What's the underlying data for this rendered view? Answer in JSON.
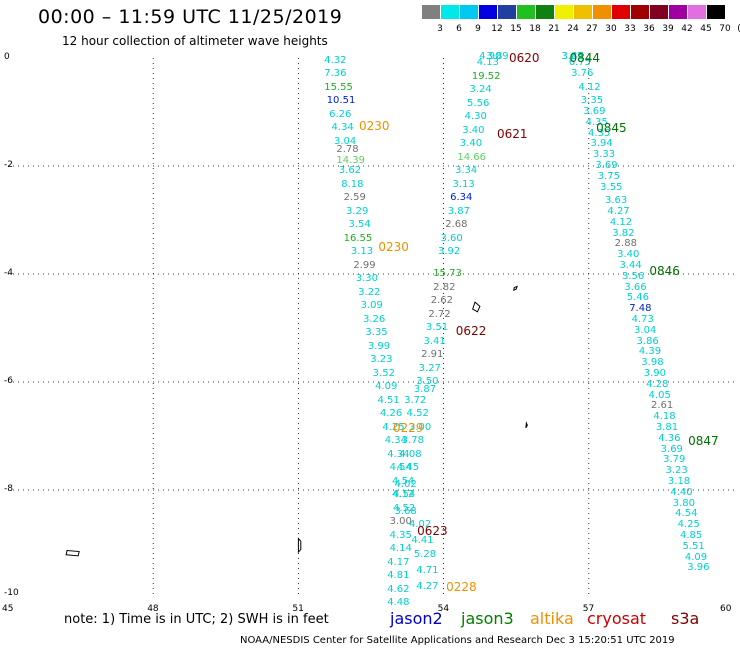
{
  "title": "00:00  –  11:59 UTC 11/25/2019",
  "subtitle": "12 hour collection of altimeter wave heights",
  "colorbar": {
    "unit": "(ft)",
    "colors": [
      "#808080",
      "#00e8e8",
      "#00c8f0",
      "#0000e0",
      "#2040a0",
      "#20c020",
      "#108010",
      "#f0f000",
      "#f0c000",
      "#f09000",
      "#e00000",
      "#a00000",
      "#800020",
      "#a000a0",
      "#e070e0",
      "#000000"
    ],
    "labels": [
      "3",
      "6",
      "9",
      "12",
      "15",
      "18",
      "21",
      "24",
      "27",
      "30",
      "33",
      "36",
      "39",
      "42",
      "45",
      "70"
    ]
  },
  "axes": {
    "x_labels": [
      "45",
      "48",
      "51",
      "54",
      "57",
      "60"
    ],
    "y_labels": [
      "0",
      "-2",
      "-4",
      "-6",
      "-8",
      "-10"
    ]
  },
  "map_data": {
    "lon_range": [
      45,
      60
    ],
    "lat_range": [
      -10,
      0
    ],
    "color_key": {
      "cyan": "#00d0d0",
      "gray": "#707070",
      "green": "#20b020",
      "lgreen": "#60d060",
      "blue": "#0020d0",
      "orange": "#f09000",
      "darkred": "#800000",
      "dkgreen": "#007000"
    },
    "heights": [
      {
        "lon": 51.7,
        "lat": -0.05,
        "v": "4.32",
        "c": "cyan"
      },
      {
        "lon": 51.7,
        "lat": -0.3,
        "v": "7.36",
        "c": "cyan"
      },
      {
        "lon": 51.7,
        "lat": -0.55,
        "v": "15.55",
        "c": "green"
      },
      {
        "lon": 51.75,
        "lat": -0.8,
        "v": "10.51",
        "c": "blue"
      },
      {
        "lon": 51.8,
        "lat": -1.05,
        "v": "6.26",
        "c": "cyan"
      },
      {
        "lon": 51.85,
        "lat": -1.3,
        "v": "4.34",
        "c": "cyan"
      },
      {
        "lon": 51.9,
        "lat": -1.55,
        "v": "3.04",
        "c": "cyan"
      },
      {
        "lon": 51.95,
        "lat": -1.7,
        "v": "2.78",
        "c": "gray"
      },
      {
        "lon": 51.95,
        "lat": -1.9,
        "v": "14.39",
        "c": "lgreen"
      },
      {
        "lon": 52.0,
        "lat": -2.1,
        "v": "3.62",
        "c": "cyan"
      },
      {
        "lon": 52.05,
        "lat": -2.35,
        "v": "8.18",
        "c": "cyan"
      },
      {
        "lon": 52.1,
        "lat": -2.6,
        "v": "2.59",
        "c": "gray"
      },
      {
        "lon": 52.15,
        "lat": -2.85,
        "v": "3.29",
        "c": "cyan"
      },
      {
        "lon": 52.2,
        "lat": -3.1,
        "v": "3.54",
        "c": "cyan"
      },
      {
        "lon": 52.1,
        "lat": -3.35,
        "v": "16.55",
        "c": "green"
      },
      {
        "lon": 52.25,
        "lat": -3.6,
        "v": "3.13",
        "c": "cyan"
      },
      {
        "lon": 52.3,
        "lat": -3.85,
        "v": "2.99",
        "c": "gray"
      },
      {
        "lon": 52.35,
        "lat": -4.1,
        "v": "3.30",
        "c": "cyan"
      },
      {
        "lon": 52.4,
        "lat": -4.35,
        "v": "3.22",
        "c": "cyan"
      },
      {
        "lon": 52.45,
        "lat": -4.6,
        "v": "3.09",
        "c": "cyan"
      },
      {
        "lon": 52.5,
        "lat": -4.85,
        "v": "3.26",
        "c": "cyan"
      },
      {
        "lon": 52.55,
        "lat": -5.1,
        "v": "3.35",
        "c": "cyan"
      },
      {
        "lon": 52.6,
        "lat": -5.35,
        "v": "3.99",
        "c": "cyan"
      },
      {
        "lon": 52.65,
        "lat": -5.6,
        "v": "3.23",
        "c": "cyan"
      },
      {
        "lon": 52.7,
        "lat": -5.85,
        "v": "3.52",
        "c": "cyan"
      },
      {
        "lon": 52.75,
        "lat": -6.1,
        "v": "4.09",
        "c": "cyan"
      },
      {
        "lon": 52.8,
        "lat": -6.35,
        "v": "4.51",
        "c": "cyan"
      },
      {
        "lon": 52.85,
        "lat": -6.6,
        "v": "4.26",
        "c": "cyan"
      },
      {
        "lon": 52.9,
        "lat": -6.85,
        "v": "4.25",
        "c": "cyan"
      },
      {
        "lon": 52.95,
        "lat": -7.1,
        "v": "4.34",
        "c": "cyan"
      },
      {
        "lon": 53.0,
        "lat": -7.35,
        "v": "4.34",
        "c": "cyan"
      },
      {
        "lon": 53.05,
        "lat": -7.6,
        "v": "4.54",
        "c": "cyan"
      },
      {
        "lon": 53.1,
        "lat": -7.85,
        "v": "4.54",
        "c": "cyan"
      },
      {
        "lon": 53.12,
        "lat": -8.1,
        "v": "4.54",
        "c": "cyan"
      },
      {
        "lon": 53.12,
        "lat": -8.35,
        "v": "4.52",
        "c": "cyan"
      },
      {
        "lon": 53.05,
        "lat": -8.6,
        "v": "3.00",
        "c": "gray"
      },
      {
        "lon": 53.05,
        "lat": -8.85,
        "v": "4.35",
        "c": "cyan"
      },
      {
        "lon": 53.05,
        "lat": -9.1,
        "v": "4.14",
        "c": "cyan"
      },
      {
        "lon": 53.0,
        "lat": -9.35,
        "v": "4.17",
        "c": "cyan"
      },
      {
        "lon": 53.0,
        "lat": -9.6,
        "v": "4.81",
        "c": "cyan"
      },
      {
        "lon": 53.0,
        "lat": -9.85,
        "v": "4.62",
        "c": "cyan"
      },
      {
        "lon": 53.0,
        "lat": -10.1,
        "v": "4.48",
        "c": "cyan"
      },
      {
        "lon": 53.35,
        "lat": -6.35,
        "v": "3.72",
        "c": "cyan"
      },
      {
        "lon": 53.4,
        "lat": -6.6,
        "v": "4.52",
        "c": "cyan"
      },
      {
        "lon": 53.45,
        "lat": -6.85,
        "v": "3.00",
        "c": "cyan"
      },
      {
        "lon": 53.3,
        "lat": -7.1,
        "v": "3.78",
        "c": "cyan"
      },
      {
        "lon": 53.25,
        "lat": -7.35,
        "v": "4.08",
        "c": "cyan"
      },
      {
        "lon": 53.2,
        "lat": -7.6,
        "v": "4.45",
        "c": "cyan"
      },
      {
        "lon": 53.15,
        "lat": -7.9,
        "v": "4.02",
        "c": "cyan"
      },
      {
        "lon": 53.1,
        "lat": -8.1,
        "v": "4.12",
        "c": "cyan"
      },
      {
        "lon": 53.15,
        "lat": -8.4,
        "v": "3.68",
        "c": "cyan"
      },
      {
        "lon": 53.45,
        "lat": -8.65,
        "v": "4.02",
        "c": "cyan"
      },
      {
        "lon": 53.5,
        "lat": -8.95,
        "v": "4.41",
        "c": "cyan"
      },
      {
        "lon": 53.55,
        "lat": -9.2,
        "v": "5.28",
        "c": "cyan"
      },
      {
        "lon": 53.6,
        "lat": -9.5,
        "v": "4.71",
        "c": "cyan"
      },
      {
        "lon": 53.6,
        "lat": -9.8,
        "v": "4.27",
        "c": "cyan"
      },
      {
        "lon": 53.95,
        "lat": -4.0,
        "v": "15.73",
        "c": "green"
      },
      {
        "lon": 53.95,
        "lat": -4.25,
        "v": "2.82",
        "c": "gray"
      },
      {
        "lon": 53.9,
        "lat": -4.5,
        "v": "2.62",
        "c": "gray"
      },
      {
        "lon": 53.85,
        "lat": -4.75,
        "v": "2.72",
        "c": "gray"
      },
      {
        "lon": 53.8,
        "lat": -5.0,
        "v": "3.51",
        "c": "cyan"
      },
      {
        "lon": 53.75,
        "lat": -5.25,
        "v": "3.41",
        "c": "cyan"
      },
      {
        "lon": 53.7,
        "lat": -5.5,
        "v": "2.91",
        "c": "gray"
      },
      {
        "lon": 53.65,
        "lat": -5.75,
        "v": "3.27",
        "c": "cyan"
      },
      {
        "lon": 53.6,
        "lat": -6.0,
        "v": "3.50",
        "c": "cyan"
      },
      {
        "lon": 53.55,
        "lat": -6.15,
        "v": "3.87",
        "c": "cyan"
      },
      {
        "lon": 54.1,
        "lat": -3.35,
        "v": "3.60",
        "c": "cyan"
      },
      {
        "lon": 54.05,
        "lat": -3.6,
        "v": "3.92",
        "c": "cyan"
      },
      {
        "lon": 54.2,
        "lat": -3.1,
        "v": "2.68",
        "c": "gray"
      },
      {
        "lon": 54.25,
        "lat": -2.85,
        "v": "3.87",
        "c": "cyan"
      },
      {
        "lon": 54.3,
        "lat": -2.6,
        "v": "6.34",
        "c": "blue"
      },
      {
        "lon": 54.35,
        "lat": -2.35,
        "v": "3.13",
        "c": "cyan"
      },
      {
        "lon": 54.4,
        "lat": -2.1,
        "v": "3.34",
        "c": "cyan"
      },
      {
        "lon": 54.45,
        "lat": -1.85,
        "v": "14.66",
        "c": "lgreen"
      },
      {
        "lon": 54.5,
        "lat": -1.6,
        "v": "3.40",
        "c": "cyan"
      },
      {
        "lon": 54.55,
        "lat": -1.35,
        "v": "3.40",
        "c": "cyan"
      },
      {
        "lon": 54.6,
        "lat": -1.1,
        "v": "4.30",
        "c": "cyan"
      },
      {
        "lon": 54.65,
        "lat": -0.85,
        "v": "5.56",
        "c": "cyan"
      },
      {
        "lon": 54.7,
        "lat": -0.6,
        "v": "3.24",
        "c": "cyan"
      },
      {
        "lon": 54.75,
        "lat": -0.35,
        "v": "19.52",
        "c": "green"
      },
      {
        "lon": 54.85,
        "lat": -0.1,
        "v": "4.13",
        "c": "cyan"
      },
      {
        "lon": 54.9,
        "lat": 0.15,
        "v": "4.90",
        "c": "cyan"
      },
      {
        "lon": 55.05,
        "lat": 0.35,
        "v": "3.89",
        "c": "cyan"
      },
      {
        "lon": 56.6,
        "lat": 0.35,
        "v": "3.85",
        "c": "cyan"
      },
      {
        "lon": 56.6,
        "lat": 0.15,
        "v": "3.47",
        "c": "cyan"
      },
      {
        "lon": 56.75,
        "lat": -0.1,
        "v": "6.75",
        "c": "cyan"
      },
      {
        "lon": 56.8,
        "lat": -0.3,
        "v": "3.76",
        "c": "cyan"
      },
      {
        "lon": 56.95,
        "lat": -0.55,
        "v": "4.12",
        "c": "cyan"
      },
      {
        "lon": 57.0,
        "lat": -0.8,
        "v": "3.35",
        "c": "cyan"
      },
      {
        "lon": 57.05,
        "lat": -1.0,
        "v": "3.69",
        "c": "cyan"
      },
      {
        "lon": 57.1,
        "lat": -1.2,
        "v": "4.35",
        "c": "cyan"
      },
      {
        "lon": 57.15,
        "lat": -1.4,
        "v": "4.35",
        "c": "cyan"
      },
      {
        "lon": 57.2,
        "lat": -1.6,
        "v": "3.94",
        "c": "cyan"
      },
      {
        "lon": 57.25,
        "lat": -1.8,
        "v": "3.33",
        "c": "cyan"
      },
      {
        "lon": 57.3,
        "lat": -2.0,
        "v": "3.69",
        "c": "cyan"
      },
      {
        "lon": 57.35,
        "lat": -2.2,
        "v": "3.75",
        "c": "cyan"
      },
      {
        "lon": 57.4,
        "lat": -2.4,
        "v": "3.55",
        "c": "cyan"
      },
      {
        "lon": 57.5,
        "lat": -2.65,
        "v": "3.63",
        "c": "cyan"
      },
      {
        "lon": 57.55,
        "lat": -2.85,
        "v": "4.27",
        "c": "cyan"
      },
      {
        "lon": 57.6,
        "lat": -3.05,
        "v": "4.12",
        "c": "cyan"
      },
      {
        "lon": 57.65,
        "lat": -3.25,
        "v": "3.82",
        "c": "cyan"
      },
      {
        "lon": 57.7,
        "lat": -3.45,
        "v": "2.88",
        "c": "gray"
      },
      {
        "lon": 57.75,
        "lat": -3.65,
        "v": "3.40",
        "c": "cyan"
      },
      {
        "lon": 57.8,
        "lat": -3.85,
        "v": "3.44",
        "c": "cyan"
      },
      {
        "lon": 57.85,
        "lat": -4.05,
        "v": "3.56",
        "c": "cyan"
      },
      {
        "lon": 57.9,
        "lat": -4.25,
        "v": "3.66",
        "c": "cyan"
      },
      {
        "lon": 57.95,
        "lat": -4.45,
        "v": "5.46",
        "c": "cyan"
      },
      {
        "lon": 58.0,
        "lat": -4.65,
        "v": "7.48",
        "c": "blue"
      },
      {
        "lon": 58.05,
        "lat": -4.85,
        "v": "4.73",
        "c": "cyan"
      },
      {
        "lon": 58.1,
        "lat": -5.05,
        "v": "3.04",
        "c": "cyan"
      },
      {
        "lon": 58.15,
        "lat": -5.25,
        "v": "3.86",
        "c": "cyan"
      },
      {
        "lon": 58.2,
        "lat": -5.45,
        "v": "4.39",
        "c": "cyan"
      },
      {
        "lon": 58.25,
        "lat": -5.65,
        "v": "3.98",
        "c": "cyan"
      },
      {
        "lon": 58.3,
        "lat": -5.85,
        "v": "3.90",
        "c": "cyan"
      },
      {
        "lon": 58.35,
        "lat": -6.05,
        "v": "4.28",
        "c": "cyan"
      },
      {
        "lon": 58.4,
        "lat": -6.25,
        "v": "4.05",
        "c": "cyan"
      },
      {
        "lon": 58.45,
        "lat": -6.45,
        "v": "2.61",
        "c": "gray"
      },
      {
        "lon": 58.5,
        "lat": -6.65,
        "v": "4.18",
        "c": "cyan"
      },
      {
        "lon": 58.55,
        "lat": -6.85,
        "v": "3.81",
        "c": "cyan"
      },
      {
        "lon": 58.6,
        "lat": -7.05,
        "v": "4.36",
        "c": "cyan"
      },
      {
        "lon": 58.65,
        "lat": -7.25,
        "v": "3.69",
        "c": "cyan"
      },
      {
        "lon": 58.7,
        "lat": -7.45,
        "v": "3.79",
        "c": "cyan"
      },
      {
        "lon": 58.75,
        "lat": -7.65,
        "v": "3.23",
        "c": "cyan"
      },
      {
        "lon": 58.8,
        "lat": -7.85,
        "v": "3.18",
        "c": "cyan"
      },
      {
        "lon": 58.85,
        "lat": -8.05,
        "v": "4.40",
        "c": "cyan"
      },
      {
        "lon": 58.9,
        "lat": -8.25,
        "v": "3.80",
        "c": "cyan"
      },
      {
        "lon": 58.95,
        "lat": -8.45,
        "v": "4.54",
        "c": "cyan"
      },
      {
        "lon": 59.0,
        "lat": -8.65,
        "v": "4.25",
        "c": "cyan"
      },
      {
        "lon": 59.05,
        "lat": -8.85,
        "v": "4.85",
        "c": "cyan"
      },
      {
        "lon": 59.1,
        "lat": -9.05,
        "v": "5.51",
        "c": "cyan"
      },
      {
        "lon": 59.15,
        "lat": -9.25,
        "v": "4.09",
        "c": "cyan"
      },
      {
        "lon": 59.2,
        "lat": -9.45,
        "v": "3.96",
        "c": "cyan"
      }
    ],
    "pass_times": [
      {
        "lon": 55.6,
        "lat": 0.35,
        "v": "0620",
        "c": "darkred"
      },
      {
        "lon": 56.85,
        "lat": 0.35,
        "v": "0844",
        "c": "dkgreen"
      },
      {
        "lon": 52.5,
        "lat": -1.25,
        "v": "0230",
        "c": "orange"
      },
      {
        "lon": 55.35,
        "lat": -1.4,
        "v": "0621",
        "c": "darkred"
      },
      {
        "lon": 57.4,
        "lat": -1.3,
        "v": "0845",
        "c": "dkgreen"
      },
      {
        "lon": 52.9,
        "lat": -3.5,
        "v": "0230",
        "c": "orange"
      },
      {
        "lon": 58.5,
        "lat": -3.95,
        "v": "0846",
        "c": "dkgreen"
      },
      {
        "lon": 54.5,
        "lat": -5.05,
        "v": "0622",
        "c": "darkred"
      },
      {
        "lon": 53.2,
        "lat": -6.85,
        "v": "0229",
        "c": "orange"
      },
      {
        "lon": 59.3,
        "lat": -7.1,
        "v": "0847",
        "c": "dkgreen"
      },
      {
        "lon": 53.7,
        "lat": -8.75,
        "v": "0623",
        "c": "darkred"
      },
      {
        "lon": 54.3,
        "lat": -9.8,
        "v": "0228",
        "c": "orange"
      }
    ]
  },
  "note": "note:  1) Time is in UTC;  2) SWH is in feet",
  "legend": [
    {
      "label": "jason2",
      "color": "#0000cc"
    },
    {
      "label": "jason3",
      "color": "#008000"
    },
    {
      "label": "altika",
      "color": "#f09000"
    },
    {
      "label": "cryosat",
      "color": "#cc0000"
    },
    {
      "label": "s3a",
      "color": "#800000"
    }
  ],
  "footer": "NOAA/NESDIS Center for Satellite Applications and Research    Dec  3 15:20:51 UTC 2019"
}
